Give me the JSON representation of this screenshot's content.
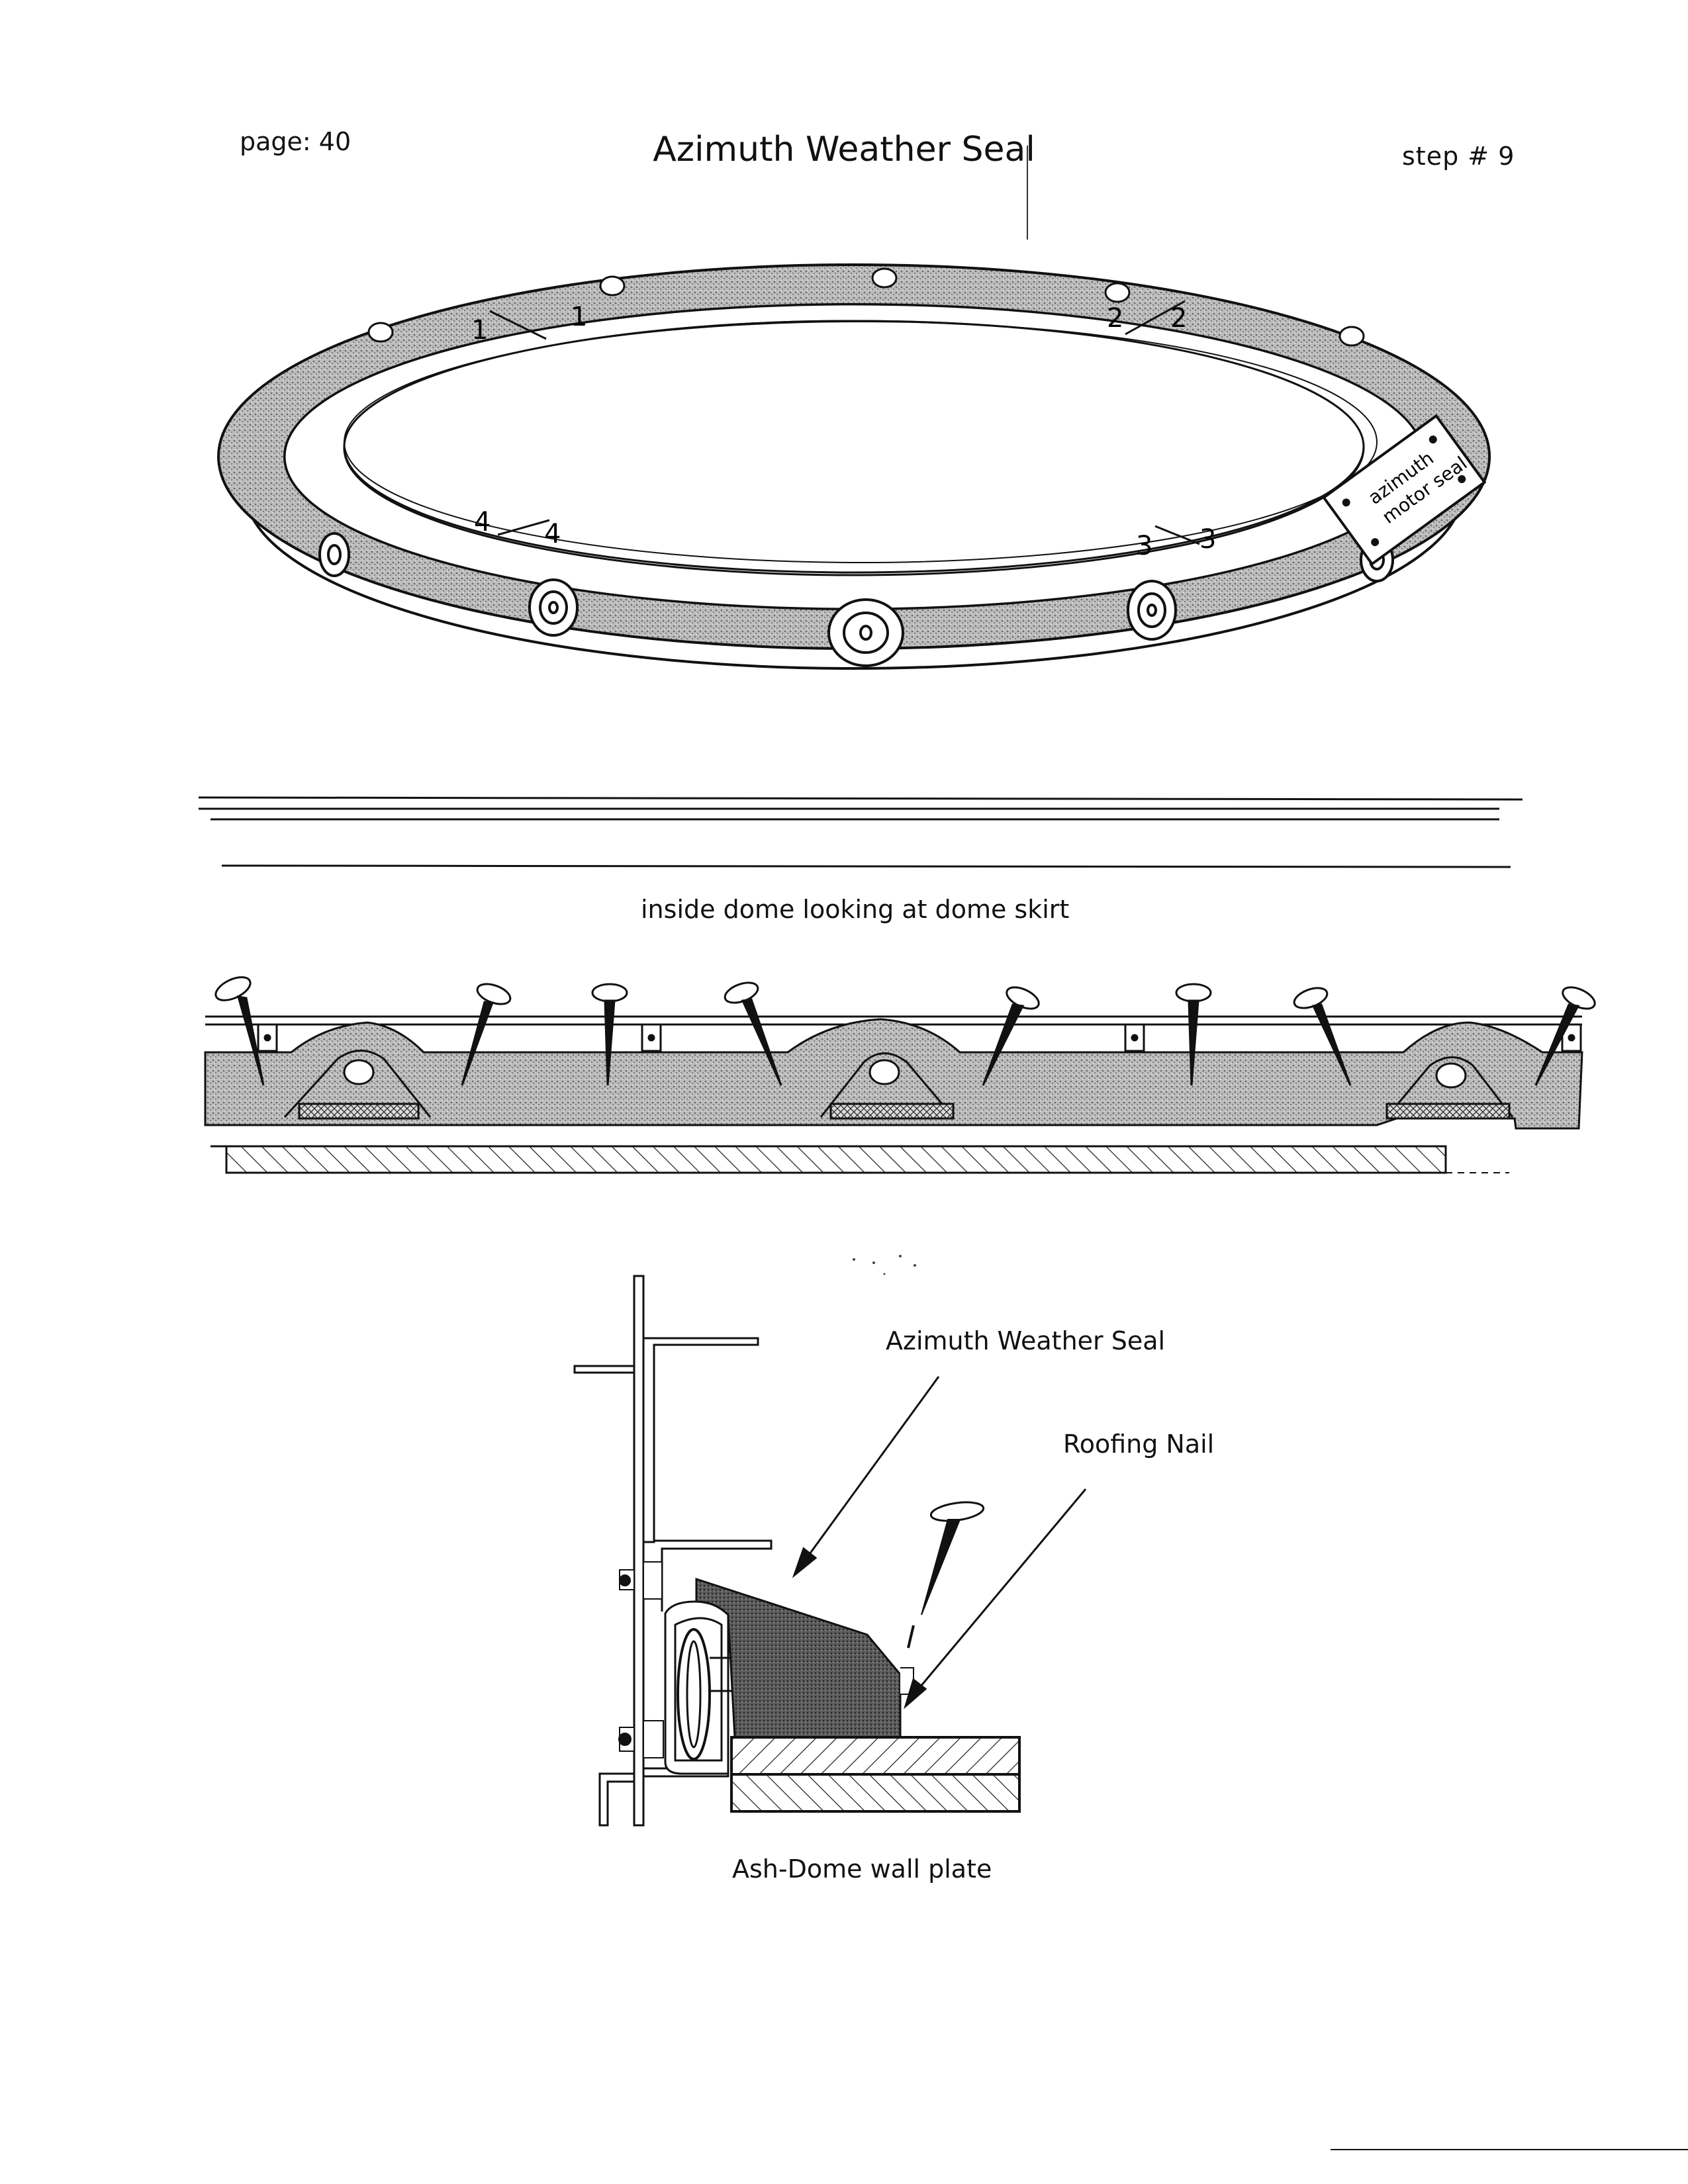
{
  "header": {
    "page_label": "page: 40",
    "title": "Azimuth Weather Seal",
    "step_label": "step # 9"
  },
  "ring_figure": {
    "marks": [
      "1",
      "1",
      "2",
      "2",
      "3",
      "3",
      "4",
      "4"
    ],
    "motor_seal_label_line1": "azimuth",
    "motor_seal_label_line2": "motor seal"
  },
  "skirt_figure": {
    "caption": "inside dome looking at dome skirt"
  },
  "section_figure": {
    "weather_seal_label": "Azimuth Weather Seal",
    "roofing_nail_label": "Roofing Nail",
    "wall_plate_label": "Ash-Dome wall plate"
  }
}
